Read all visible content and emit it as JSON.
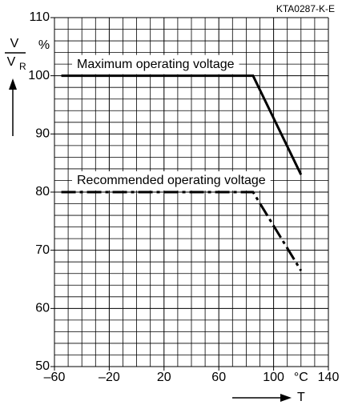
{
  "chart_data": {
    "type": "line",
    "figure_code": "KTA0287-K-E",
    "ylabel_numerator": "V",
    "ylabel_denominator": "V",
    "ylabel_subscript": "R",
    "y_unit": "%",
    "xlabel": "T",
    "x_unit": "°C",
    "xlim": [
      -60,
      140
    ],
    "xticks": [
      {
        "value": -60,
        "label": "–60"
      },
      {
        "value": -20,
        "label": "–20"
      },
      20,
      60,
      100,
      140
    ],
    "ylim": [
      50,
      110
    ],
    "yticks": [
      50,
      60,
      70,
      80,
      90,
      100,
      110
    ],
    "grid": true,
    "series": [
      {
        "name": "Maximum operating voltage",
        "color": "#000000",
        "linestyle": "solid",
        "x": [
          -55,
          85,
          120
        ],
        "values": [
          100,
          100,
          83
        ]
      },
      {
        "name": "Recommended operating voltage",
        "color": "#000000",
        "linestyle": "dashdot",
        "x": [
          -55,
          85,
          120
        ],
        "values": [
          80,
          80,
          66.5
        ]
      }
    ]
  }
}
